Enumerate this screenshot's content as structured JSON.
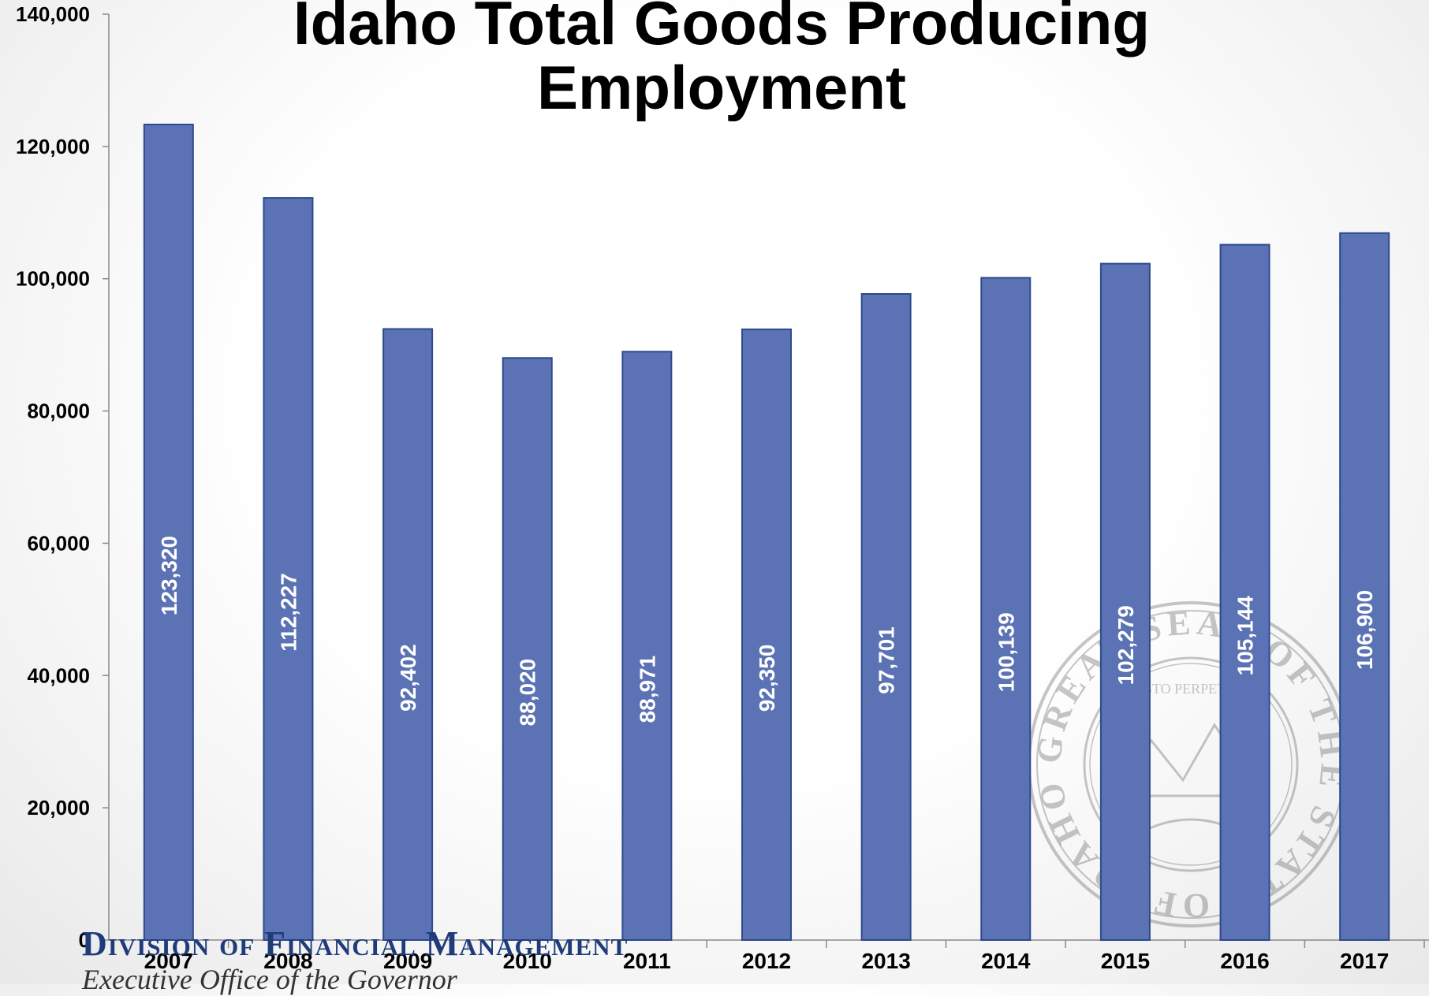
{
  "chart_data": {
    "type": "bar",
    "title_line1": "Idaho Total Goods Producing",
    "title_line2": "Employment",
    "categories": [
      "2007",
      "2008",
      "2009",
      "2010",
      "2011",
      "2012",
      "2013",
      "2014",
      "2015",
      "2016",
      "2017"
    ],
    "values": [
      123320,
      112227,
      92402,
      88020,
      88971,
      92350,
      97701,
      100139,
      102279,
      105144,
      106900
    ],
    "data_labels": [
      "123,320",
      "112,227",
      "92,402",
      "88,020",
      "88,971",
      "92,350",
      "97,701",
      "100,139",
      "102,279",
      "105,144",
      "106,900"
    ],
    "ylim": [
      0,
      140000
    ],
    "yticks": [
      0,
      20000,
      40000,
      60000,
      80000,
      100000,
      120000,
      140000
    ],
    "ytick_labels": [
      "0",
      "20,000",
      "40,000",
      "60,000",
      "80,000",
      "100,000",
      "120,000",
      "140,000"
    ],
    "grid": false,
    "legend": "none",
    "bar_color": "#5b72b4",
    "bar_edge_color": "#2e4a8c",
    "label_color": "#ffffff"
  },
  "footer": {
    "division_text": "Division of Financial Management",
    "office_text": "Executive Office of the Governor"
  },
  "seal": {
    "inscription": "GREAT SEAL OF THE STATE OF IDAHO",
    "motto": "ESTO PERPETUA"
  }
}
